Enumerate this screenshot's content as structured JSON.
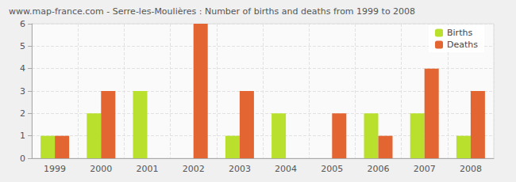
{
  "chart_data": {
    "type": "bar",
    "title": "www.map-france.com - Serre-les-Moulières : Number of births and deaths from 1999 to 2008",
    "categories": [
      "1999",
      "2000",
      "2001",
      "2002",
      "2003",
      "2004",
      "2005",
      "2006",
      "2007",
      "2008"
    ],
    "series": [
      {
        "name": "Births",
        "color": "#b8e02c",
        "values": [
          1,
          2,
          3,
          0,
          1,
          2,
          0,
          2,
          2,
          1
        ]
      },
      {
        "name": "Deaths",
        "color": "#e36531",
        "values": [
          1,
          3,
          0,
          6,
          3,
          0,
          2,
          1,
          4,
          3
        ]
      }
    ],
    "ylim": [
      0,
      6
    ],
    "yticks": [
      0,
      1,
      2,
      3,
      4,
      5,
      6
    ],
    "grid": true,
    "legend": "upper right"
  }
}
